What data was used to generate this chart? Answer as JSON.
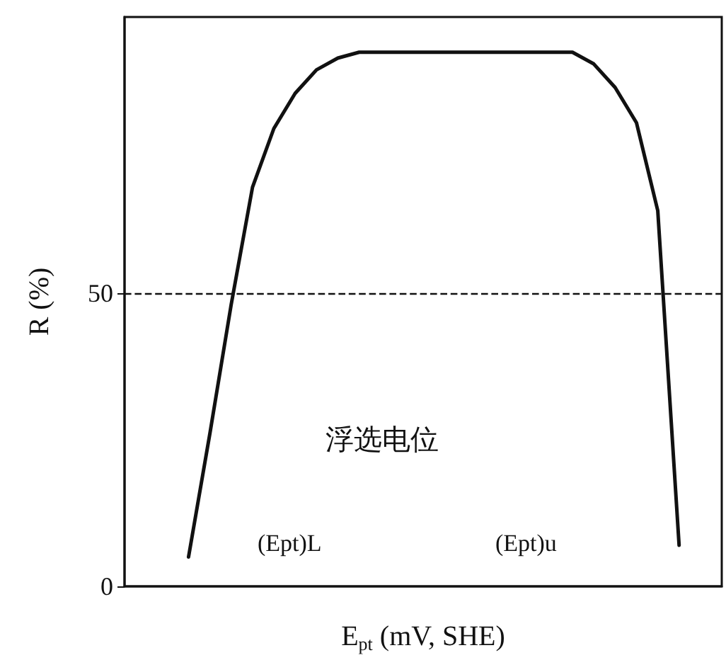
{
  "chart_data": {
    "type": "line",
    "xlabel": "E$_{pt}$ (mV, SHE)",
    "ylabel": "R (%)",
    "categories": [
      null,
      null,
      null,
      null,
      null,
      null,
      null,
      null,
      null,
      null,
      null,
      null,
      null,
      null,
      null,
      null,
      null,
      null,
      null,
      null,
      null,
      null,
      null,
      null,
      null,
      null,
      null,
      null,
      null
    ],
    "series": [
      {
        "color": "#111111",
        "values": [
          null,
          null,
          null,
          5,
          26,
          48,
          68,
          78,
          84,
          88,
          90,
          91,
          91,
          91,
          91,
          91,
          91,
          91,
          91,
          91,
          91,
          91,
          89,
          85,
          79,
          64,
          7,
          null,
          null
        ]
      }
    ],
    "ylim": [
      0,
      97
    ],
    "yticks": [
      0,
      50
    ],
    "grid": false,
    "marker": "none",
    "line_style": "solid",
    "ref_lines": [
      {
        "axis": "y",
        "value": 50,
        "line_style": "dashed"
      }
    ],
    "annotations": [
      "浮选电位",
      "(Ept)L",
      "(Ept)u"
    ]
  }
}
